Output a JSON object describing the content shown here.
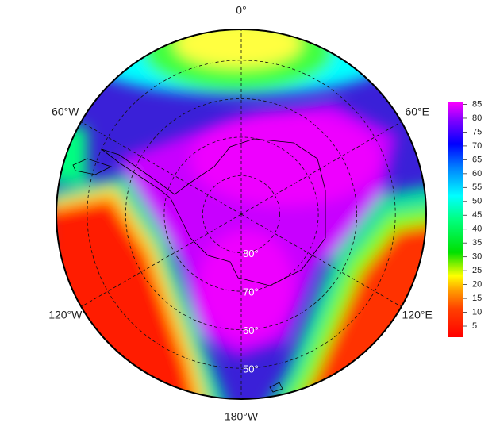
{
  "map": {
    "lat_lim": [
      90,
      42
    ],
    "lat_ticks": [
      {
        "value": 80,
        "label": "80°"
      },
      {
        "value": 70,
        "label": "70°"
      },
      {
        "value": 60,
        "label": "60°"
      },
      {
        "value": 50,
        "label": "50°"
      }
    ],
    "lon_ticks": [
      {
        "value": 0,
        "label": "0°"
      },
      {
        "value": 60,
        "label": "60°E"
      },
      {
        "value": 120,
        "label": "120°E"
      },
      {
        "value": 180,
        "label": "180°W"
      },
      {
        "value": -120,
        "label": "120°W"
      },
      {
        "value": -60,
        "label": "60°W"
      }
    ],
    "colorbar": {
      "lim": [
        1,
        86
      ],
      "ticks": [
        5,
        10,
        15,
        20,
        25,
        30,
        35,
        40,
        45,
        50,
        55,
        60,
        65,
        70,
        75,
        80,
        85
      ]
    }
  }
}
